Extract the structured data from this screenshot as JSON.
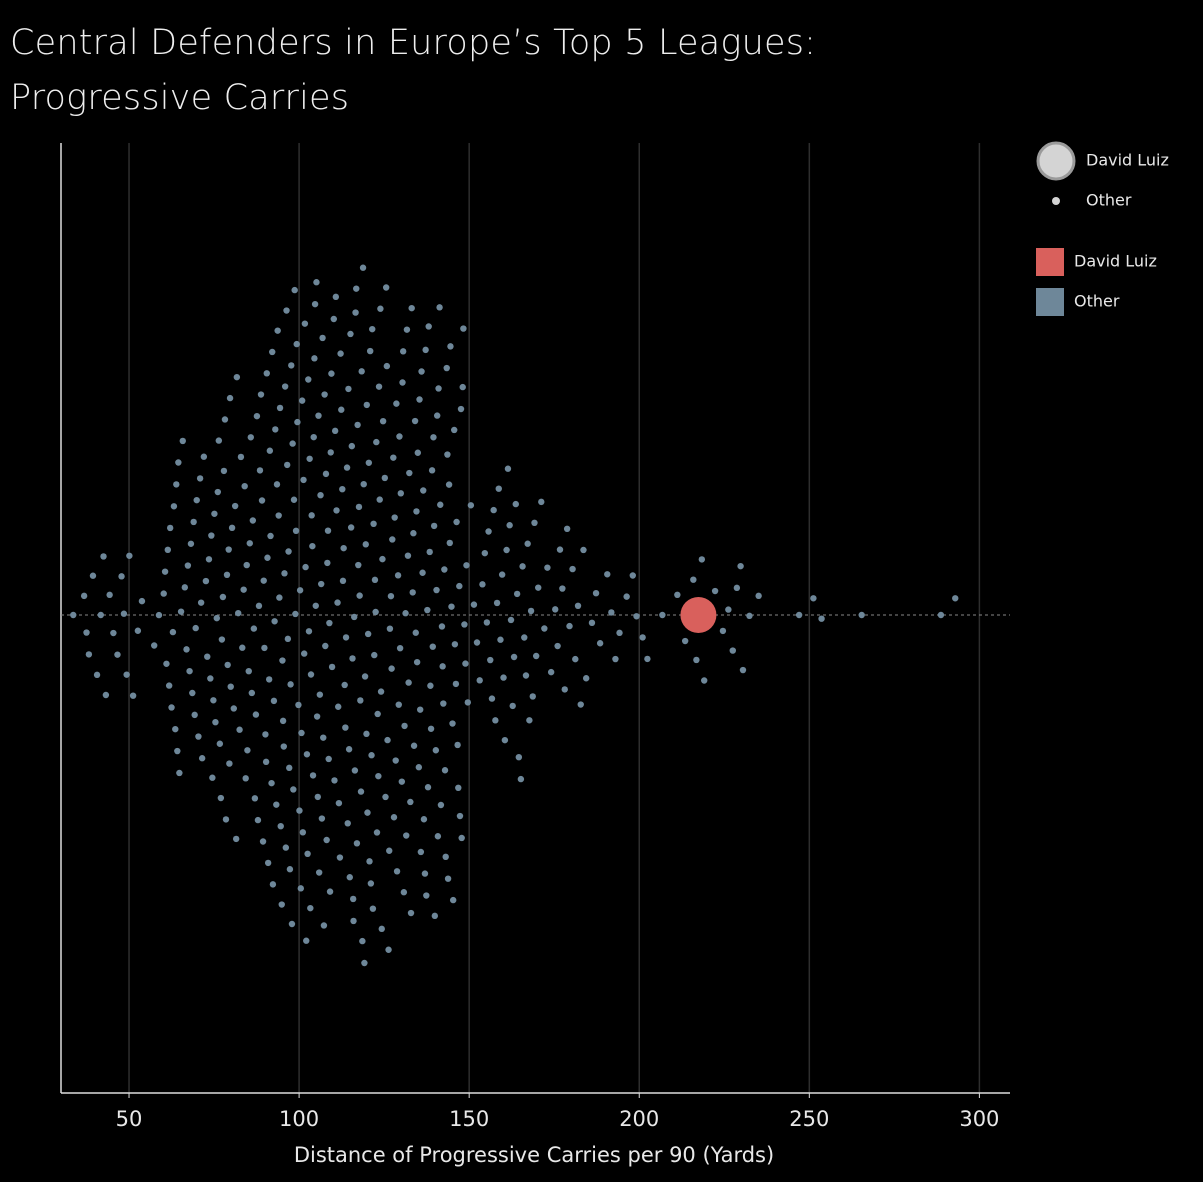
{
  "chart_data": {
    "type": "swarm",
    "title": "Central Defenders in Europe’s Top 5 Leagues:\nProgressive Carries",
    "xlabel": "Distance of Progressive Carries per 90 (Yards)",
    "xlim": [
      30,
      309
    ],
    "xticks": [
      50,
      100,
      150,
      200,
      250,
      300
    ],
    "grid": true,
    "series": [
      {
        "name": "David Luiz",
        "color": "#d9605c",
        "values": [
          217.4
        ]
      },
      {
        "name": "Other",
        "color": "#6e8799",
        "values": [
          33.6,
          36.8,
          37.5,
          38.2,
          39.4,
          40.6,
          41.7,
          42.5,
          43.2,
          44.3,
          45.4,
          46.6,
          47.8,
          48.5,
          49.3,
          50.1,
          51.2,
          52.6,
          53.8,
          57.4,
          58.8,
          60.2,
          60.6,
          61.0,
          61.4,
          61.8,
          62.1,
          62.5,
          62.9,
          63.2,
          63.6,
          63.9,
          64.2,
          64.5,
          64.8,
          65.3,
          65.8,
          66.4,
          66.9,
          67.3,
          67.8,
          68.2,
          68.6,
          69.0,
          69.3,
          69.6,
          69.9,
          70.4,
          70.9,
          71.2,
          71.5,
          72.0,
          72.6,
          73.0,
          73.5,
          73.9,
          74.2,
          74.5,
          74.8,
          75.1,
          75.4,
          75.8,
          76.1,
          76.4,
          76.7,
          77.0,
          77.3,
          77.6,
          77.9,
          78.2,
          78.5,
          78.8,
          79.0,
          79.3,
          79.5,
          79.7,
          79.9,
          80.3,
          80.8,
          81.2,
          81.5,
          81.7,
          82.1,
          82.5,
          82.9,
          83.3,
          83.7,
          84.0,
          84.3,
          84.6,
          84.8,
          85.2,
          85.5,
          85.8,
          86.1,
          86.4,
          86.7,
          87.0,
          87.3,
          87.6,
          87.9,
          88.2,
          88.5,
          88.8,
          89.1,
          89.4,
          89.6,
          89.8,
          90.1,
          90.3,
          90.5,
          90.7,
          90.9,
          91.2,
          91.4,
          91.6,
          91.9,
          92.1,
          92.3,
          92.6,
          92.8,
          93.0,
          93.3,
          93.5,
          93.7,
          94.0,
          94.2,
          94.4,
          94.6,
          94.9,
          95.1,
          95.3,
          95.5,
          95.7,
          95.9,
          96.1,
          96.3,
          96.5,
          96.7,
          96.9,
          97.1,
          97.3,
          97.5,
          97.7,
          97.9,
          98.1,
          98.3,
          98.5,
          98.7,
          98.9,
          99.1,
          99.3,
          99.5,
          99.8,
          100.1,
          100.3,
          100.5,
          100.7,
          100.9,
          101.1,
          101.3,
          101.5,
          101.7,
          101.9,
          102.1,
          102.3,
          102.5,
          102.7,
          102.9,
          103.1,
          103.3,
          103.5,
          103.7,
          103.9,
          104.1,
          104.3,
          104.5,
          104.7,
          104.9,
          105.1,
          105.3,
          105.5,
          105.7,
          105.9,
          106.1,
          106.3,
          106.5,
          106.7,
          106.9,
          107.1,
          107.3,
          107.5,
          107.7,
          107.9,
          108.1,
          108.3,
          108.5,
          108.7,
          108.9,
          109.1,
          109.3,
          109.5,
          109.7,
          110.2,
          110.4,
          110.6,
          110.8,
          111.0,
          111.3,
          111.5,
          111.7,
          112.0,
          112.2,
          112.4,
          112.7,
          112.9,
          113.1,
          113.4,
          113.6,
          113.8,
          114.1,
          114.3,
          114.5,
          114.7,
          114.9,
          115.1,
          115.3,
          115.5,
          115.7,
          115.9,
          116.0,
          116.2,
          116.4,
          116.6,
          116.8,
          117.0,
          117.2,
          117.4,
          117.6,
          117.8,
          118.0,
          118.2,
          118.4,
          118.6,
          118.8,
          119.0,
          119.2,
          119.4,
          119.6,
          119.8,
          119.9,
          120.1,
          120.3,
          120.5,
          120.7,
          120.9,
          121.1,
          121.3,
          121.5,
          121.7,
          121.9,
          122.1,
          122.3,
          122.5,
          122.7,
          122.9,
          123.1,
          123.3,
          123.5,
          123.7,
          123.9,
          124.1,
          124.3,
          124.5,
          124.7,
          125.2,
          125.4,
          125.6,
          125.8,
          126.0,
          126.3,
          126.5,
          126.7,
          127.0,
          127.2,
          127.4,
          127.7,
          127.9,
          128.1,
          128.4,
          128.6,
          128.8,
          129.1,
          129.3,
          129.5,
          129.7,
          129.9,
          130.2,
          130.4,
          130.6,
          130.8,
          131.0,
          131.3,
          131.5,
          131.7,
          132.0,
          132.2,
          132.4,
          132.7,
          132.9,
          133.1,
          133.4,
          133.6,
          133.8,
          134.1,
          134.3,
          134.5,
          134.7,
          134.9,
          135.2,
          135.4,
          135.6,
          135.8,
          136.0,
          136.3,
          136.5,
          136.7,
          137.0,
          137.2,
          137.4,
          137.7,
          137.9,
          138.1,
          138.4,
          138.6,
          138.8,
          139.1,
          139.3,
          139.5,
          139.7,
          139.9,
          140.2,
          140.4,
          140.6,
          140.8,
          141.0,
          141.3,
          141.5,
          141.7,
          142.0,
          142.2,
          142.4,
          142.7,
          142.9,
          143.1,
          143.4,
          143.6,
          143.8,
          144.1,
          144.3,
          144.5,
          144.8,
          145.1,
          145.3,
          145.6,
          145.8,
          146.1,
          146.3,
          146.6,
          146.8,
          147.1,
          147.3,
          147.6,
          147.8,
          148.1,
          148.3,
          148.6,
          148.9,
          149.2,
          149.6,
          150.5,
          151.4,
          152.3,
          153.1,
          153.9,
          154.6,
          155.2,
          155.7,
          156.2,
          156.7,
          157.2,
          157.7,
          158.2,
          158.7,
          159.2,
          159.7,
          160.1,
          160.5,
          161.0,
          161.4,
          161.9,
          162.3,
          162.8,
          163.2,
          163.7,
          164.1,
          164.6,
          165.2,
          165.7,
          166.2,
          166.7,
          167.2,
          167.7,
          168.2,
          168.7,
          169.2,
          169.7,
          170.3,
          171.2,
          172.1,
          173.0,
          174.1,
          175.3,
          176.0,
          176.7,
          177.4,
          178.1,
          178.8,
          179.5,
          180.4,
          181.2,
          182.0,
          182.8,
          183.6,
          184.4,
          186.1,
          187.3,
          188.5,
          190.6,
          191.8,
          193.0,
          194.2,
          196.3,
          198.1,
          199.2,
          201.0,
          202.4,
          206.8,
          211.2,
          213.5,
          215.9,
          216.8,
          218.4,
          219.1,
          222.3,
          224.6,
          226.2,
          227.5,
          228.7,
          229.8,
          230.5,
          232.4,
          235.1,
          247.0,
          251.2,
          253.6,
          265.4,
          288.7,
          292.9
        ]
      }
    ]
  }
}
